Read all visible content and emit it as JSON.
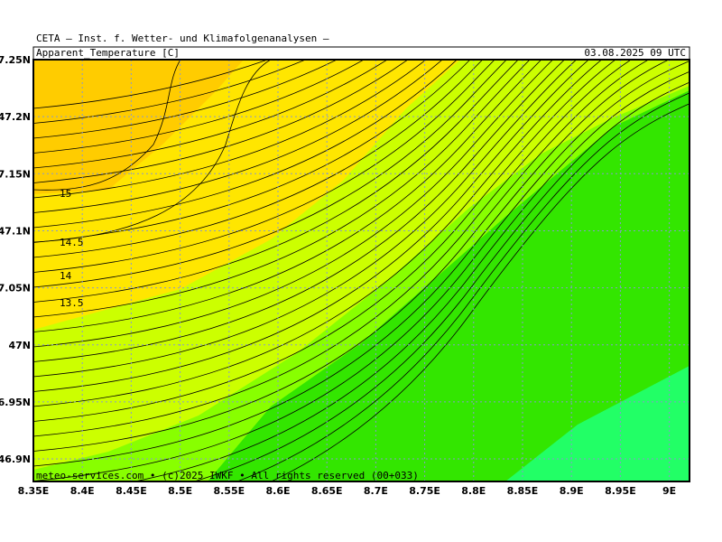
{
  "header": {
    "title": "CETA – Inst. f. Wetter- und Klimafolgenanalysen –",
    "parameter": "Apparent_Temperature [C]",
    "valid_time": "03.08.2025 09 UTC"
  },
  "map": {
    "lat_labels": [
      "7.25N",
      "47.2N",
      "7.15N",
      "47.1N",
      "7.05N",
      "47N",
      "6.95N",
      "46.9N"
    ],
    "lon_labels": [
      "8.35E",
      "8.4E",
      "8.45E",
      "8.5E",
      "8.55E",
      "8.6E",
      "8.65E",
      "8.7E",
      "8.75E",
      "8.8E",
      "8.85E",
      "8.9E",
      "8.95E",
      "9E"
    ],
    "contour_labels": [
      "15",
      "14.5",
      "14",
      "13.5"
    ]
  },
  "footer": "meteo-services.com • (c)2025 IWKF • All rights reserved (00+033)"
}
